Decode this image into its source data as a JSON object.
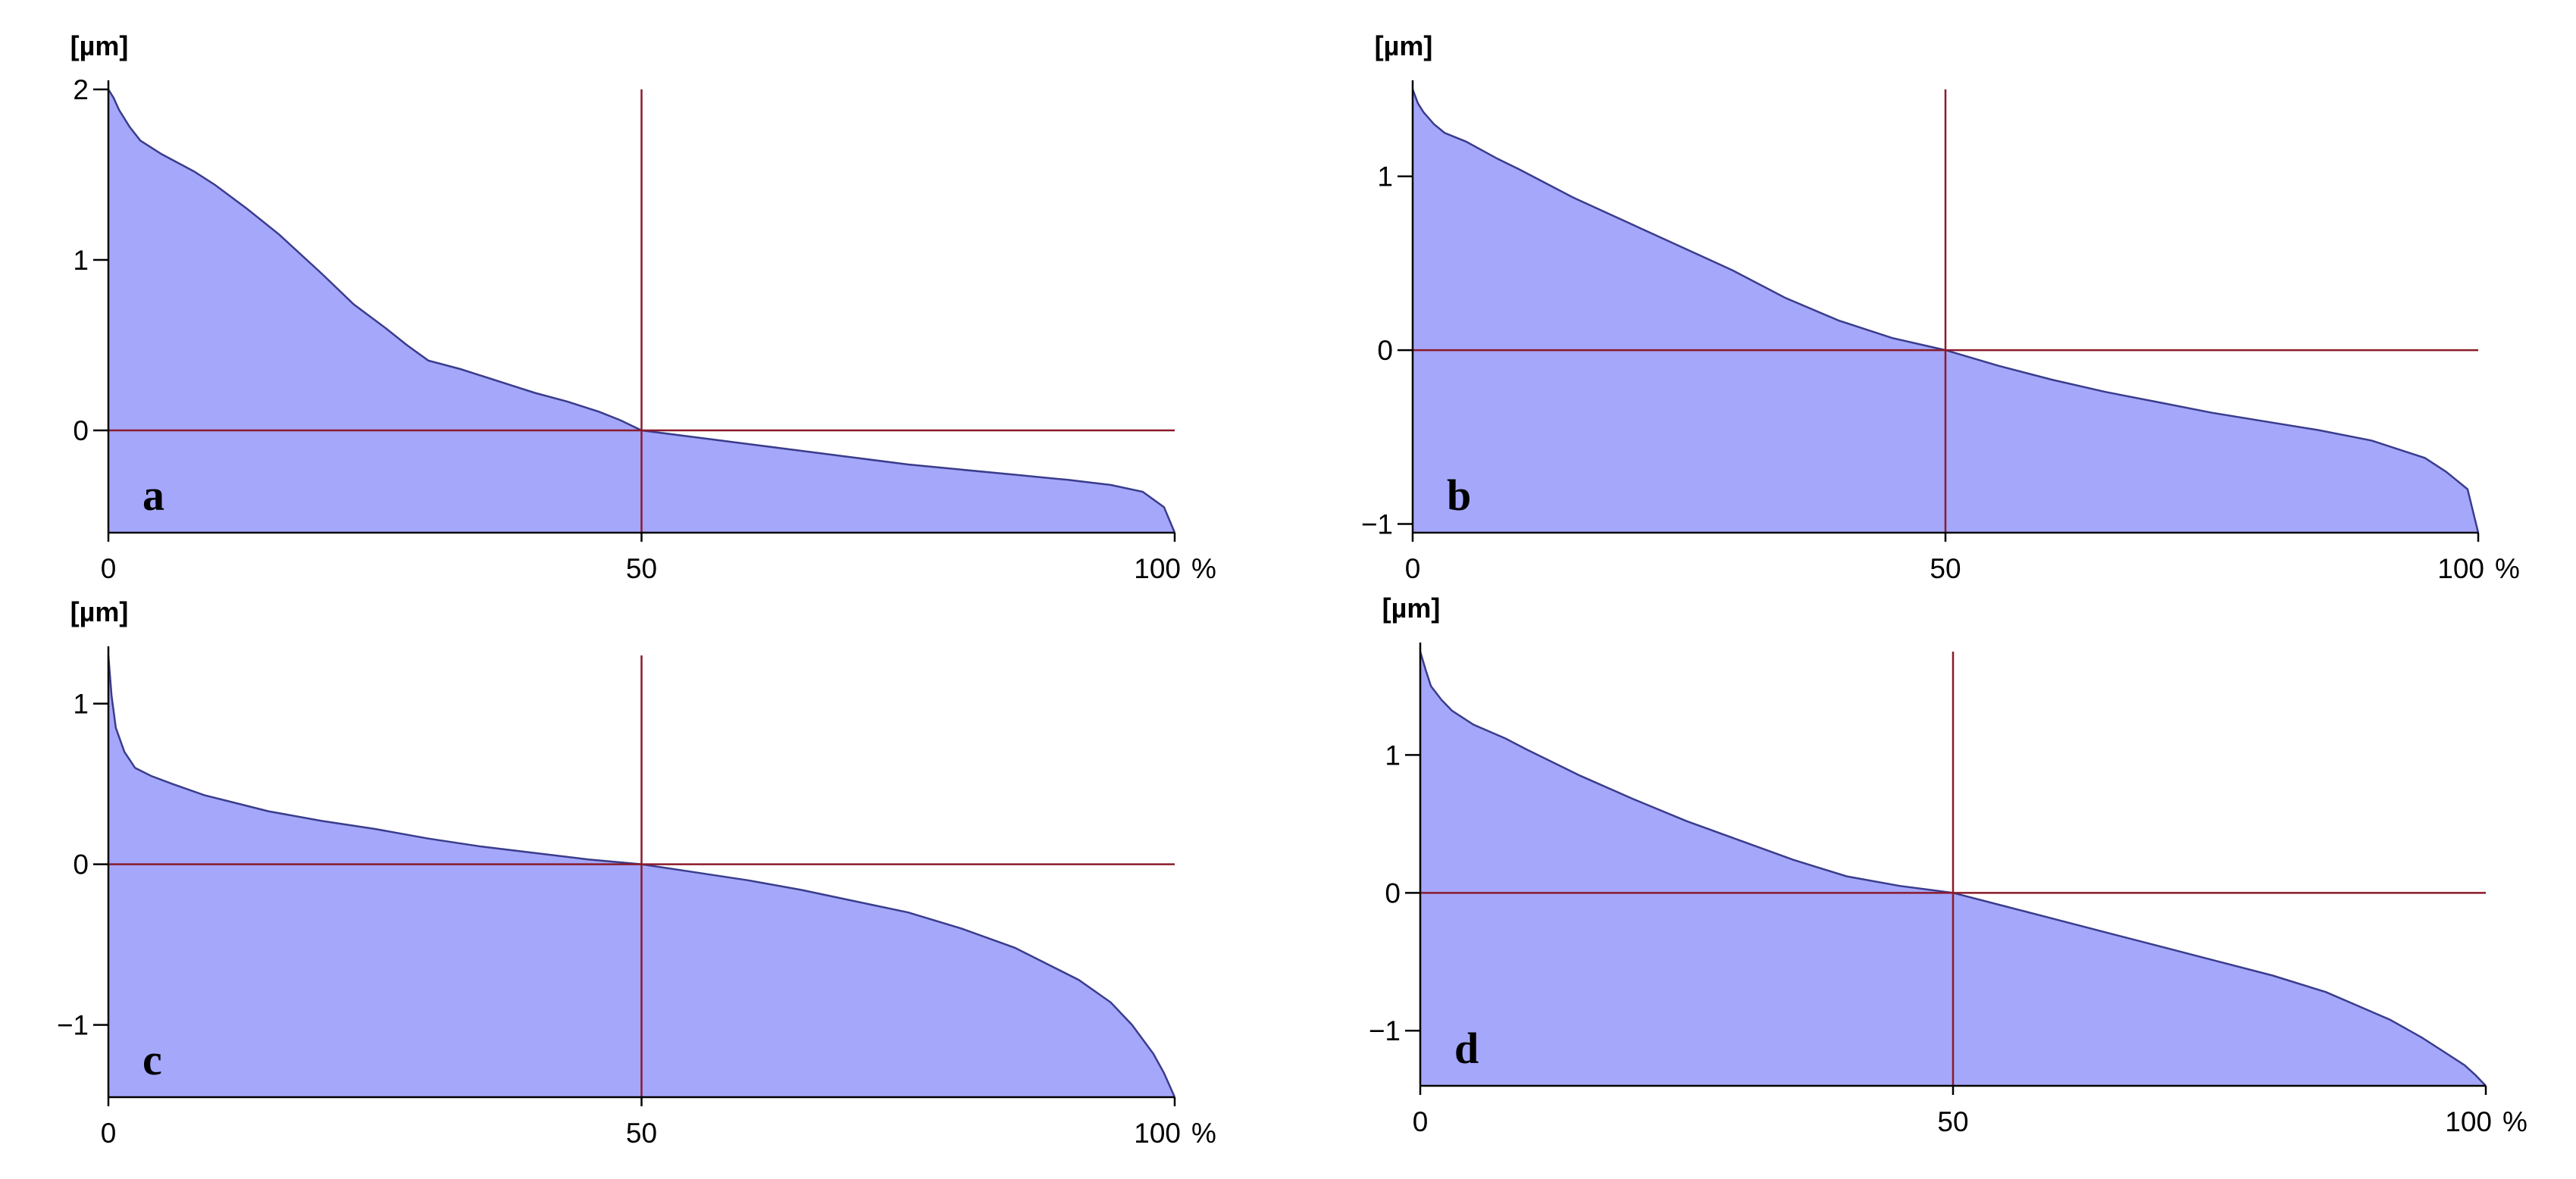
{
  "chart_data": [
    {
      "id": "a",
      "type": "area",
      "panel_label": "a",
      "y_unit_label": "[µm]",
      "x_suffix": "%",
      "xlim": [
        0,
        100
      ],
      "ylim": [
        -0.6,
        2.0
      ],
      "x_ticks": [
        0,
        50,
        100
      ],
      "y_ticks": [
        {
          "value": 2,
          "label": "2"
        },
        {
          "value": 1,
          "label": "1"
        },
        {
          "value": 0,
          "label": "0"
        }
      ],
      "reference_x": 50,
      "reference_y": 0,
      "x": [
        0,
        0.5,
        1,
        2,
        3,
        5,
        8,
        10,
        13,
        16,
        20,
        23,
        26,
        28,
        30,
        33,
        36,
        40,
        43,
        46,
        48,
        50,
        55,
        60,
        65,
        70,
        75,
        80,
        85,
        90,
        94,
        97,
        99,
        100
      ],
      "y": [
        2.0,
        1.95,
        1.88,
        1.78,
        1.7,
        1.62,
        1.52,
        1.44,
        1.3,
        1.15,
        0.92,
        0.74,
        0.6,
        0.5,
        0.41,
        0.36,
        0.3,
        0.22,
        0.17,
        0.11,
        0.06,
        0.0,
        -0.04,
        -0.08,
        -0.12,
        -0.16,
        -0.2,
        -0.23,
        -0.26,
        -0.29,
        -0.32,
        -0.36,
        -0.45,
        -0.6
      ]
    },
    {
      "id": "b",
      "type": "area",
      "panel_label": "b",
      "y_unit_label": "[µm]",
      "x_suffix": "%",
      "xlim": [
        0,
        100
      ],
      "ylim": [
        -1.05,
        1.5
      ],
      "x_ticks": [
        0,
        50,
        100
      ],
      "y_ticks": [
        {
          "value": 1,
          "label": "1"
        },
        {
          "value": 0,
          "label": "0"
        },
        {
          "value": -1,
          "label": "−1"
        }
      ],
      "reference_x": 50,
      "reference_y": 0,
      "x": [
        0,
        0.5,
        1,
        2,
        3,
        5,
        8,
        10,
        15,
        20,
        25,
        30,
        35,
        40,
        45,
        50,
        55,
        60,
        65,
        70,
        75,
        80,
        85,
        90,
        95,
        97,
        99,
        100
      ],
      "y": [
        1.5,
        1.42,
        1.37,
        1.3,
        1.25,
        1.2,
        1.1,
        1.04,
        0.88,
        0.74,
        0.6,
        0.46,
        0.3,
        0.17,
        0.07,
        0.0,
        -0.09,
        -0.17,
        -0.24,
        -0.3,
        -0.36,
        -0.41,
        -0.46,
        -0.52,
        -0.62,
        -0.7,
        -0.8,
        -1.05
      ]
    },
    {
      "id": "c",
      "type": "area",
      "panel_label": "c",
      "y_unit_label": "[µm]",
      "x_suffix": "%",
      "xlim": [
        0,
        100
      ],
      "ylim": [
        -1.45,
        1.3
      ],
      "x_ticks": [
        0,
        50,
        100
      ],
      "y_ticks": [
        {
          "value": 1,
          "label": "1"
        },
        {
          "value": 0,
          "label": "0"
        },
        {
          "value": -1,
          "label": "−1"
        }
      ],
      "reference_x": 50,
      "reference_y": 0,
      "x": [
        0,
        0.3,
        0.7,
        1.5,
        2.5,
        4,
        6,
        9,
        12,
        15,
        20,
        25,
        30,
        35,
        40,
        45,
        50,
        55,
        60,
        65,
        70,
        75,
        80,
        85,
        88,
        91,
        94,
        96,
        98,
        99,
        100
      ],
      "y": [
        1.3,
        1.05,
        0.85,
        0.7,
        0.6,
        0.55,
        0.5,
        0.43,
        0.38,
        0.33,
        0.27,
        0.22,
        0.16,
        0.11,
        0.07,
        0.03,
        0.0,
        -0.05,
        -0.1,
        -0.16,
        -0.23,
        -0.3,
        -0.4,
        -0.52,
        -0.62,
        -0.72,
        -0.86,
        -1.0,
        -1.18,
        -1.3,
        -1.45
      ]
    },
    {
      "id": "d",
      "type": "area",
      "panel_label": "d",
      "y_unit_label": "[µm]",
      "x_suffix": "%",
      "xlim": [
        0,
        100
      ],
      "ylim": [
        -1.4,
        1.75
      ],
      "x_ticks": [
        0,
        50,
        100
      ],
      "y_ticks": [
        {
          "value": 1,
          "label": "1"
        },
        {
          "value": 0,
          "label": "0"
        },
        {
          "value": -1,
          "label": "−1"
        }
      ],
      "reference_x": 50,
      "reference_y": 0,
      "x": [
        0,
        0.5,
        1,
        2,
        3,
        5,
        8,
        10,
        15,
        20,
        25,
        30,
        35,
        40,
        45,
        50,
        55,
        60,
        65,
        70,
        75,
        80,
        85,
        88,
        91,
        94,
        96,
        98,
        99,
        100
      ],
      "y": [
        1.75,
        1.62,
        1.5,
        1.4,
        1.32,
        1.22,
        1.12,
        1.04,
        0.85,
        0.68,
        0.52,
        0.38,
        0.24,
        0.12,
        0.05,
        0.0,
        -0.1,
        -0.2,
        -0.3,
        -0.4,
        -0.5,
        -0.6,
        -0.72,
        -0.82,
        -0.92,
        -1.05,
        -1.15,
        -1.25,
        -1.32,
        -1.4
      ]
    }
  ],
  "colors": {
    "fill": "#a5a7fb",
    "curve": "#3a3c8c",
    "reference": "#8b1a2a",
    "axis": "#000000"
  }
}
